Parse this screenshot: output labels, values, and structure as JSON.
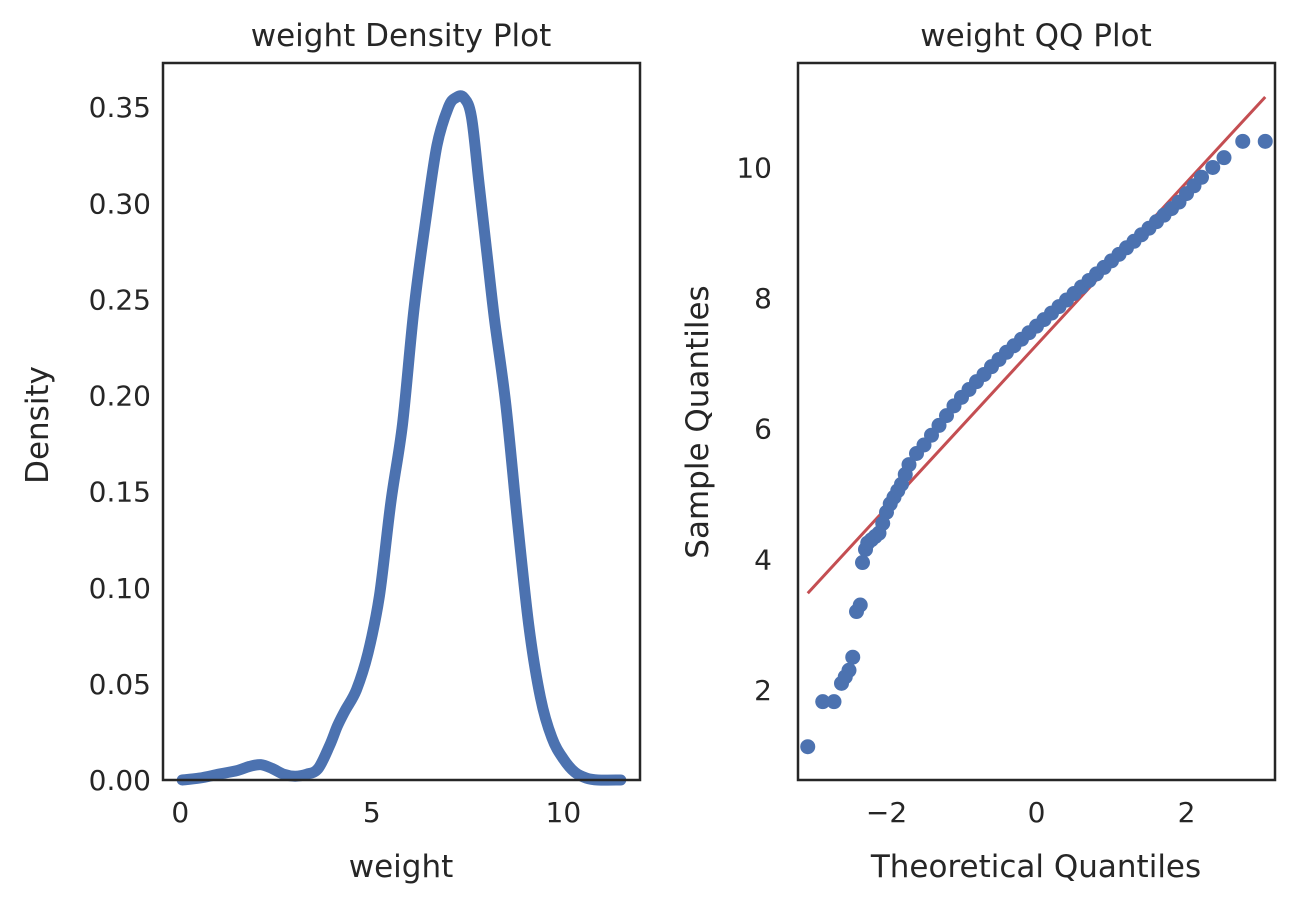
{
  "chart_data": [
    {
      "type": "line",
      "title": "weight Density Plot",
      "xlabel": "weight",
      "ylabel": "Density",
      "xlim": [
        -0.45,
        12.0
      ],
      "ylim": [
        0,
        0.373
      ],
      "xticks": [
        0,
        5,
        10
      ],
      "xtick_labels": [
        "0",
        "5",
        "10"
      ],
      "yticks": [
        0,
        0.05,
        0.1,
        0.15,
        0.2,
        0.25,
        0.3,
        0.35
      ],
      "ytick_labels": [
        "0.00",
        "0.05",
        "0.10",
        "0.15",
        "0.20",
        "0.25",
        "0.30",
        "0.35"
      ],
      "grid": false,
      "color": "#4c72b0",
      "series": [
        {
          "x": [
            0.05,
            0.5,
            1.0,
            1.5,
            1.8,
            2.1,
            2.4,
            2.7,
            3.0,
            3.3,
            3.6,
            3.9,
            4.1,
            4.3,
            4.6,
            4.9,
            5.2,
            5.5,
            5.8,
            6.1,
            6.4,
            6.7,
            7.0,
            7.2,
            7.4,
            7.6,
            7.8,
            8.0,
            8.2,
            8.5,
            8.8,
            9.1,
            9.4,
            9.7,
            10.0,
            10.3,
            10.6,
            10.9,
            11.5
          ],
          "y": [
            0.0,
            0.001,
            0.003,
            0.005,
            0.007,
            0.008,
            0.006,
            0.003,
            0.002,
            0.003,
            0.006,
            0.018,
            0.028,
            0.036,
            0.047,
            0.066,
            0.096,
            0.145,
            0.185,
            0.245,
            0.29,
            0.33,
            0.35,
            0.355,
            0.355,
            0.345,
            0.31,
            0.275,
            0.24,
            0.195,
            0.135,
            0.08,
            0.043,
            0.022,
            0.011,
            0.004,
            0.001,
            0.0,
            0.0
          ]
        }
      ]
    },
    {
      "type": "scatter",
      "title": "weight QQ Plot",
      "xlabel": "Theoretical Quantiles",
      "ylabel": "Sample Quantiles",
      "xlim": [
        -3.18,
        3.18
      ],
      "ylim": [
        0.62,
        11.6
      ],
      "xticks": [
        -2,
        0,
        2
      ],
      "xtick_labels": [
        "−2",
        "0",
        "2"
      ],
      "yticks": [
        2,
        4,
        6,
        8,
        10
      ],
      "ytick_labels": [
        "2",
        "4",
        "6",
        "8",
        "10"
      ],
      "grid": false,
      "point_color": "#4c72b0",
      "line_color": "#c44e52",
      "reference_line": {
        "x": [
          -3.05,
          3.05
        ],
        "y": [
          3.48,
          11.08
        ]
      },
      "points": {
        "x": [
          -3.05,
          -2.85,
          -2.7,
          -2.6,
          -2.55,
          -2.5,
          -2.45,
          -2.4,
          -2.35,
          -2.32,
          -2.28,
          -2.25,
          -2.2,
          -2.15,
          -2.1,
          -2.05,
          -2.0,
          -1.95,
          -1.9,
          -1.85,
          -1.8,
          -1.75,
          -1.7,
          -1.6,
          -1.5,
          -1.4,
          -1.3,
          -1.2,
          -1.1,
          -1.0,
          -0.9,
          -0.8,
          -0.7,
          -0.6,
          -0.5,
          -0.4,
          -0.3,
          -0.2,
          -0.1,
          0.0,
          0.1,
          0.2,
          0.3,
          0.4,
          0.5,
          0.6,
          0.7,
          0.8,
          0.9,
          1.0,
          1.1,
          1.2,
          1.3,
          1.4,
          1.5,
          1.6,
          1.7,
          1.8,
          1.9,
          2.0,
          2.1,
          2.2,
          2.35,
          2.5,
          2.75,
          3.05
        ],
        "y": [
          1.13,
          1.82,
          1.82,
          2.1,
          2.2,
          2.3,
          2.5,
          3.2,
          3.3,
          3.95,
          4.15,
          4.25,
          4.3,
          4.35,
          4.4,
          4.55,
          4.72,
          4.85,
          4.95,
          5.05,
          5.15,
          5.3,
          5.45,
          5.62,
          5.75,
          5.9,
          6.05,
          6.2,
          6.35,
          6.48,
          6.6,
          6.72,
          6.83,
          6.95,
          7.06,
          7.17,
          7.27,
          7.37,
          7.47,
          7.57,
          7.67,
          7.77,
          7.87,
          7.97,
          8.07,
          8.17,
          8.27,
          8.37,
          8.47,
          8.57,
          8.67,
          8.77,
          8.87,
          8.97,
          9.07,
          9.17,
          9.27,
          9.37,
          9.47,
          9.6,
          9.72,
          9.85,
          10.0,
          10.15,
          10.4,
          10.4
        ]
      }
    }
  ]
}
